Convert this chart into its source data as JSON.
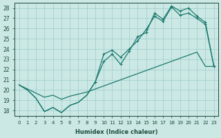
{
  "xlabel": "Humidex (Indice chaleur)",
  "bg_color": "#cce8e4",
  "grid_color": "#99cccc",
  "line_color": "#1a7a6e",
  "xlim": [
    -0.5,
    23.5
  ],
  "ylim": [
    17.5,
    28.5
  ],
  "xticks": [
    0,
    1,
    2,
    3,
    4,
    5,
    6,
    7,
    8,
    9,
    10,
    11,
    12,
    13,
    14,
    15,
    16,
    17,
    18,
    19,
    20,
    21,
    22,
    23
  ],
  "yticks": [
    18,
    19,
    20,
    21,
    22,
    23,
    24,
    25,
    26,
    27,
    28
  ],
  "line1_x": [
    0,
    1,
    2,
    3,
    4,
    5,
    6,
    7,
    8,
    9,
    10,
    11,
    12,
    13,
    14,
    15,
    16,
    17,
    18,
    19,
    20,
    21,
    22,
    23
  ],
  "line1_y": [
    20.5,
    20.0,
    19.2,
    17.9,
    18.3,
    17.8,
    18.5,
    18.8,
    19.5,
    20.8,
    23.5,
    23.9,
    23.2,
    24.0,
    24.8,
    25.9,
    27.2,
    26.7,
    28.1,
    27.3,
    27.5,
    27.0,
    26.4,
    22.3
  ],
  "line1_markers_start": 9,
  "line2_x": [
    0,
    1,
    2,
    3,
    4,
    5,
    6,
    7,
    8,
    9,
    10,
    11,
    12,
    13,
    14,
    15,
    16,
    17,
    18,
    19,
    20,
    21,
    22,
    23
  ],
  "line2_y": [
    20.5,
    20.0,
    19.2,
    17.9,
    18.3,
    17.8,
    18.5,
    18.8,
    19.5,
    20.8,
    22.8,
    23.5,
    22.5,
    23.8,
    25.2,
    25.6,
    27.5,
    26.9,
    28.2,
    27.7,
    28.0,
    27.2,
    26.6,
    22.3
  ],
  "line2_markers_start": 9,
  "line3_x": [
    0,
    1,
    2,
    3,
    4,
    5,
    6,
    7,
    8,
    9,
    10,
    11,
    12,
    13,
    14,
    15,
    16,
    17,
    18,
    19,
    20,
    21,
    22,
    23
  ],
  "line3_y": [
    20.5,
    20.1,
    19.7,
    19.3,
    19.5,
    19.1,
    19.4,
    19.6,
    19.8,
    20.1,
    20.4,
    20.7,
    21.0,
    21.3,
    21.6,
    21.9,
    22.2,
    22.5,
    22.8,
    23.1,
    23.4,
    23.7,
    22.3,
    22.3
  ]
}
